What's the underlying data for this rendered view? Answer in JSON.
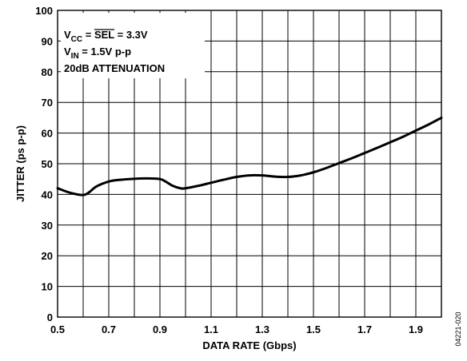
{
  "chart_data": {
    "type": "line",
    "xlabel": "DATA RATE (Gbps)",
    "ylabel": "JITTER (ps p-p)",
    "xlim": [
      0.5,
      2.0
    ],
    "ylim": [
      0,
      100
    ],
    "x_ticks": [
      "0.5",
      "0.7",
      "0.9",
      "1.1",
      "1.3",
      "1.5",
      "1.7",
      "1.9"
    ],
    "y_ticks": [
      "0",
      "10",
      "20",
      "30",
      "40",
      "50",
      "60",
      "70",
      "80",
      "90",
      "100"
    ],
    "grid": true,
    "annotations": {
      "vcc_main": "V",
      "vcc_sub": "CC",
      "vcc_eq": " = ",
      "vcc_sel": "SEL",
      "vcc_value": " = 3.3V",
      "vin_main": "V",
      "vin_sub": "IN",
      "vin_value": " = 1.5V p-p",
      "attenuation": "20dB ATTENUATION"
    },
    "figure_id": "04221-020",
    "series": [
      {
        "x": [
          0.5,
          0.55,
          0.6,
          0.625,
          0.65,
          0.7,
          0.75,
          0.8,
          0.85,
          0.9,
          0.92,
          0.95,
          0.98,
          1.0,
          1.05,
          1.1,
          1.15,
          1.2,
          1.25,
          1.3,
          1.35,
          1.4,
          1.45,
          1.5,
          1.55,
          1.6,
          1.65,
          1.7,
          1.75,
          1.8,
          1.85,
          1.9,
          1.95,
          2.0
        ],
        "y": [
          42.0,
          40.5,
          39.8,
          40.8,
          42.5,
          44.2,
          44.8,
          45.1,
          45.2,
          45.0,
          44.3,
          42.8,
          42.0,
          42.0,
          42.8,
          43.8,
          44.8,
          45.7,
          46.2,
          46.2,
          45.8,
          45.7,
          46.2,
          47.2,
          48.6,
          50.2,
          51.8,
          53.5,
          55.2,
          57.0,
          58.8,
          60.8,
          62.8,
          65.0
        ]
      }
    ]
  }
}
